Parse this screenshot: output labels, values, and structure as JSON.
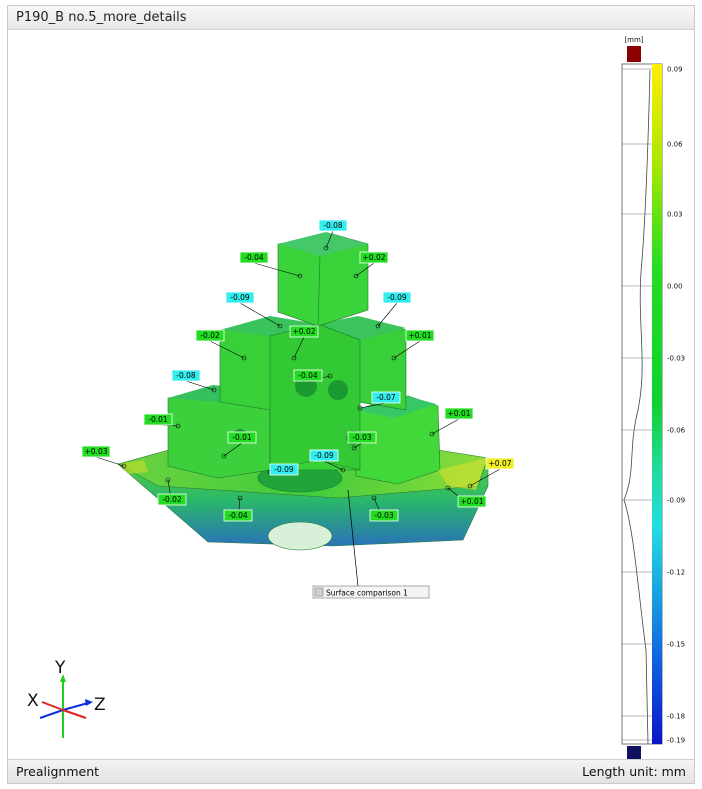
{
  "window": {
    "title": "P190_B no.5_more_details"
  },
  "status": {
    "left": "Prealignment",
    "right": "Length unit: mm"
  },
  "colorbar": {
    "unit": "[mm]",
    "ticks": [
      "0.09",
      "0.06",
      "0.03",
      "0.00",
      "-0.03",
      "-0.06",
      "-0.09",
      "-0.12",
      "-0.15",
      "-0.18",
      "-0.19"
    ],
    "max_color": "#8b0000",
    "min_color": "#101060"
  },
  "tooltip": {
    "label": "Surface comparison 1"
  },
  "axes": {
    "x": "X",
    "y": "Y",
    "z": "Z"
  },
  "deviations": [
    {
      "text": "-0.08",
      "tone": "cyan"
    },
    {
      "text": "-0.04",
      "tone": "green"
    },
    {
      "text": "+0.02",
      "tone": "green"
    },
    {
      "text": "-0.09",
      "tone": "cyan"
    },
    {
      "text": "-0.09",
      "tone": "cyan"
    },
    {
      "text": "-0.02",
      "tone": "green"
    },
    {
      "text": "+0.02",
      "tone": "green"
    },
    {
      "text": "+0.01",
      "tone": "green"
    },
    {
      "text": "-0.04",
      "tone": "green"
    },
    {
      "text": "-0.08",
      "tone": "cyan"
    },
    {
      "text": "-0.07",
      "tone": "cyan"
    },
    {
      "text": "-0.01",
      "tone": "green"
    },
    {
      "text": "+0.01",
      "tone": "green"
    },
    {
      "text": "-0.01",
      "tone": "green"
    },
    {
      "text": "-0.03",
      "tone": "green"
    },
    {
      "text": "+0.03",
      "tone": "green"
    },
    {
      "text": "-0.09",
      "tone": "cyan"
    },
    {
      "text": "-0.09",
      "tone": "cyan"
    },
    {
      "text": "+0.07",
      "tone": "yellow"
    },
    {
      "text": "-0.02",
      "tone": "green"
    },
    {
      "text": "+0.01",
      "tone": "green"
    },
    {
      "text": "-0.04",
      "tone": "green"
    },
    {
      "text": "-0.03",
      "tone": "green"
    }
  ],
  "tones": {
    "green": "#22dd22",
    "cyan": "#33eeee",
    "yellow": "#eeee22"
  }
}
